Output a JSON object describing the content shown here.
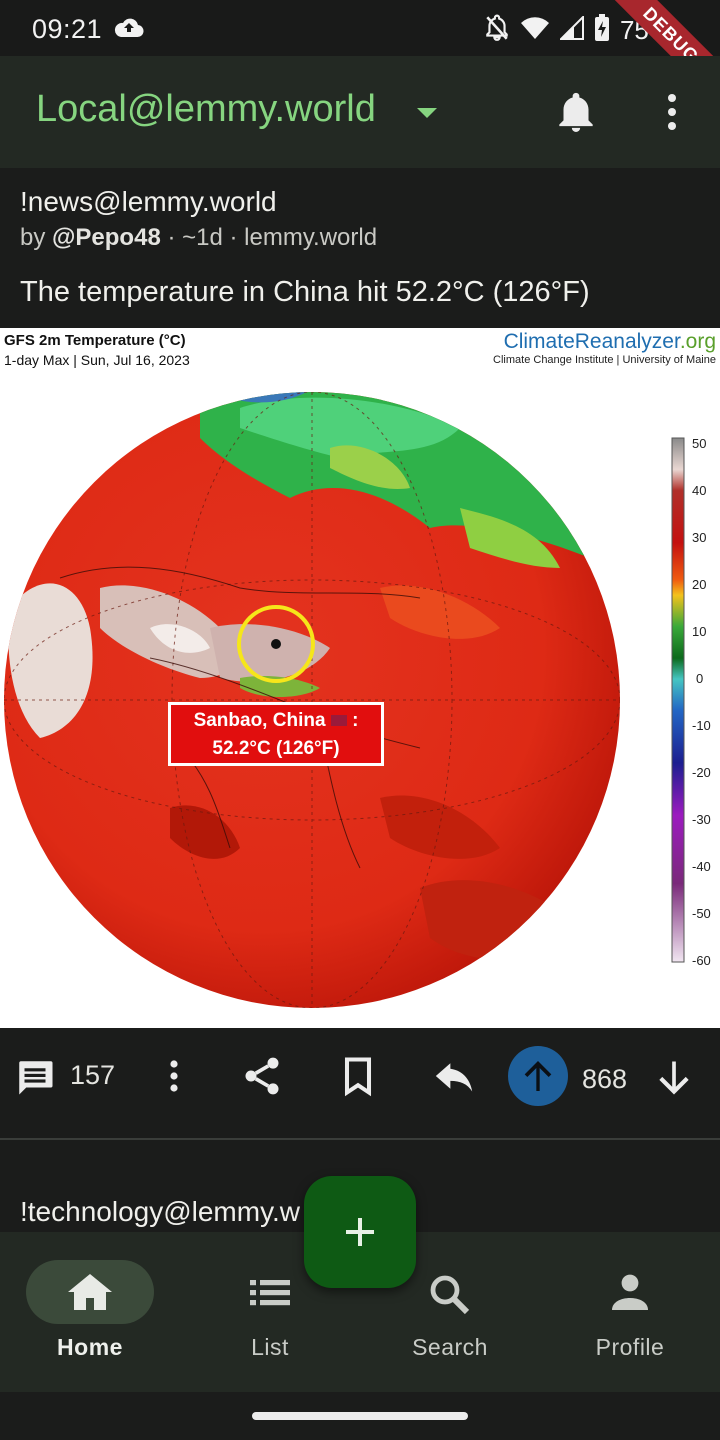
{
  "status_bar": {
    "time": "09:21",
    "battery": "75%",
    "debug": "DEBUG"
  },
  "app_bar": {
    "title": "Local@lemmy.world"
  },
  "post": {
    "community": "!news@lemmy.world",
    "by_prefix": "by ",
    "author": "@Pepo48",
    "meta": " · ~1d · lemmy.world",
    "title": "The temperature in China hit 52.2°C (126°F)",
    "image": {
      "title": "GFS 2m Temperature (°C)",
      "subtitle": "1-day Max | Sun, Jul 16, 2023",
      "brand_climate": "Climate",
      "brand_reanalyzer": "Reanalyzer",
      "brand_org": ".org",
      "brand_sub": "Climate Change Institute | University of Maine",
      "scale": [
        "50",
        "40",
        "30",
        "20",
        "10",
        "0",
        "-10",
        "-20",
        "-30",
        "-40",
        "-50",
        "-60"
      ],
      "callout_line1": "Sanbao, China",
      "callout_line1_suffix": " :",
      "callout_line2": "52.2°C (126°F)"
    },
    "comments_count": "157",
    "score": "868"
  },
  "next_post": {
    "community": "!technology@lemmy.w"
  },
  "nav": {
    "items": [
      {
        "label": "Home"
      },
      {
        "label": "List"
      },
      {
        "label": "Search"
      },
      {
        "label": "Profile"
      }
    ]
  },
  "colors": {
    "accent": "#86d580",
    "upvote": "#1e5f9a",
    "fab": "#0e5a14"
  }
}
